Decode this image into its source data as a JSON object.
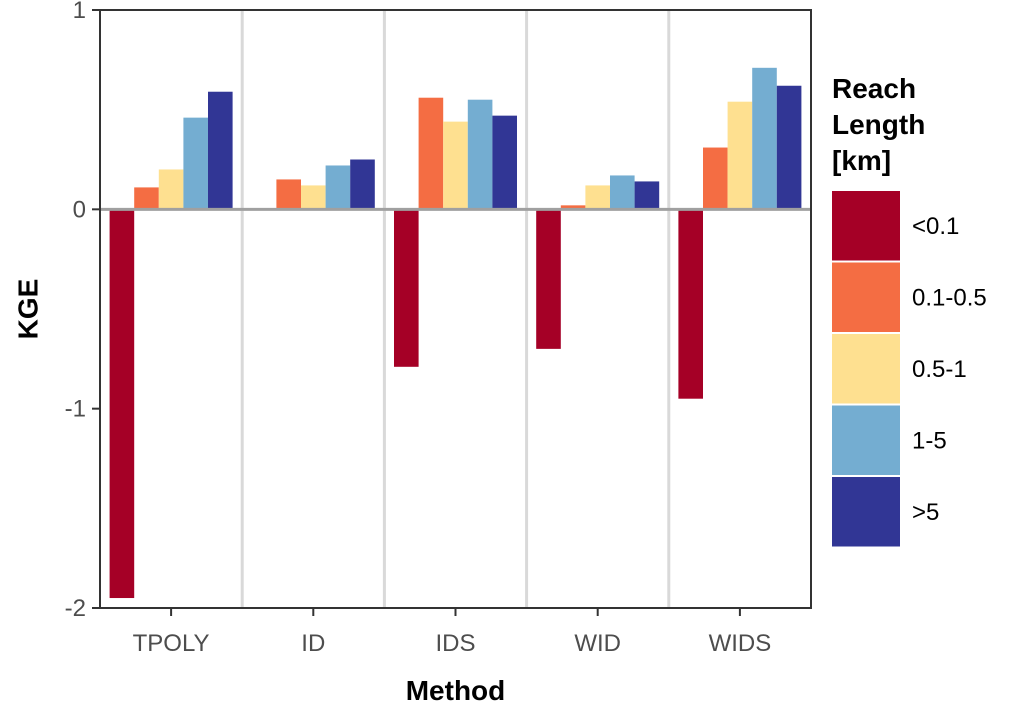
{
  "chart_data": {
    "type": "bar",
    "xlabel": "Method",
    "ylabel": "KGE",
    "categories": [
      "TPOLY",
      "ID",
      "IDS",
      "WID",
      "WIDS"
    ],
    "ylim": [
      -2,
      1
    ],
    "yticks": [
      -2,
      -1,
      0,
      1
    ],
    "ytick_labels": [
      "-2",
      "-1",
      "0",
      "1"
    ],
    "grid": false,
    "legend": {
      "title_lines": [
        "Reach",
        "Length",
        "[km]"
      ],
      "placement": "right"
    },
    "series": [
      {
        "name": "<0.1",
        "color": "#a50026",
        "values": [
          -1.95,
          null,
          -0.79,
          -0.7,
          -0.95
        ]
      },
      {
        "name": "0.1-0.5",
        "color": "#f46d43",
        "values": [
          0.11,
          0.15,
          0.56,
          0.02,
          0.31
        ]
      },
      {
        "name": "0.5-1",
        "color": "#fee090",
        "values": [
          0.2,
          0.12,
          0.44,
          0.12,
          0.54
        ]
      },
      {
        "name": "1-5",
        "color": "#74add1",
        "values": [
          0.46,
          0.22,
          0.55,
          0.17,
          0.71
        ]
      },
      {
        "name": ">5",
        "color": "#313695",
        "values": [
          0.59,
          0.25,
          0.47,
          0.14,
          0.62
        ]
      }
    ]
  }
}
